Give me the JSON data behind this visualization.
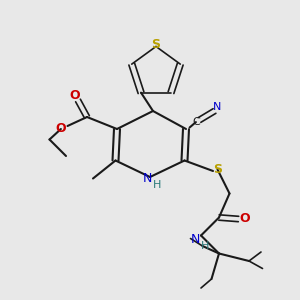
{
  "background_color": "#e8e8e8",
  "bond_color": "#1a1a1a",
  "colors": {
    "S": "#b8a000",
    "O": "#cc0000",
    "N": "#0000cc",
    "C_label": "#1a1a1a",
    "NH": "#0000cc",
    "H": "#2a7a7a",
    "CN_C": "#1a1a1a",
    "CN_N": "#0000cc"
  },
  "figsize": [
    3.0,
    3.0
  ],
  "dpi": 100
}
